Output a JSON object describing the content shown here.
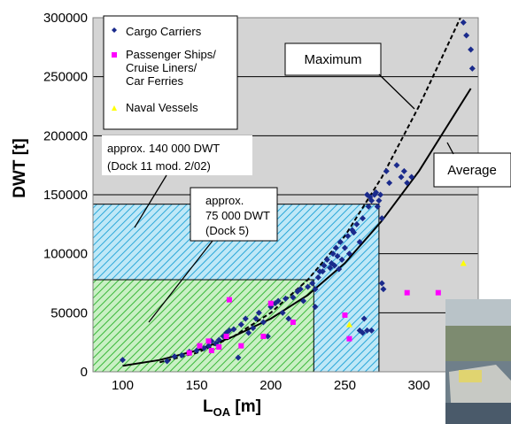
{
  "chart_data": {
    "type": "scatter",
    "xlabel": "L",
    "xlabel_sub": "OA",
    "xlabel_unit": " [m]",
    "ylabel": "DWT [t]",
    "xlim": [
      80,
      340
    ],
    "ylim": [
      0,
      300000
    ],
    "xticks": [
      100,
      150,
      200,
      250,
      300
    ],
    "yticks": [
      0,
      50000,
      100000,
      150000,
      200000,
      250000,
      300000
    ],
    "grid": true,
    "legend_position": "top-left",
    "colors": {
      "plot_bg": "#d4d4d4",
      "cargo": "#1a2a8c",
      "passenger": "#ff00ff",
      "naval": "#ffff00",
      "dock_large_hatch": "#2aa7d9",
      "dock_large_bg": "#bfe8f7",
      "dock_small_hatch": "#3ab83a",
      "dock_small_bg": "#c9f0c4"
    },
    "series": [
      {
        "name": "Cargo Carriers",
        "marker": "diamond",
        "points": [
          [
            100,
            10000
          ],
          [
            130,
            9000
          ],
          [
            135,
            13000
          ],
          [
            140,
            14000
          ],
          [
            145,
            17000
          ],
          [
            150,
            18000
          ],
          [
            155,
            20000
          ],
          [
            158,
            22000
          ],
          [
            160,
            26000
          ],
          [
            163,
            24000
          ],
          [
            165,
            27000
          ],
          [
            168,
            30000
          ],
          [
            170,
            33000
          ],
          [
            172,
            35000
          ],
          [
            175,
            36000
          ],
          [
            178,
            12000
          ],
          [
            180,
            40000
          ],
          [
            183,
            45000
          ],
          [
            185,
            33000
          ],
          [
            188,
            37000
          ],
          [
            190,
            45000
          ],
          [
            192,
            50000
          ],
          [
            195,
            42000
          ],
          [
            198,
            30000
          ],
          [
            200,
            55000
          ],
          [
            203,
            58000
          ],
          [
            205,
            60000
          ],
          [
            208,
            50000
          ],
          [
            210,
            62000
          ],
          [
            212,
            45000
          ],
          [
            215,
            63000
          ],
          [
            218,
            68000
          ],
          [
            220,
            70000
          ],
          [
            222,
            60000
          ],
          [
            225,
            72000
          ],
          [
            228,
            75000
          ],
          [
            230,
            70000
          ],
          [
            230,
            55000
          ],
          [
            232,
            80000
          ],
          [
            233,
            85000
          ],
          [
            235,
            85000
          ],
          [
            236,
            90000
          ],
          [
            238,
            95000
          ],
          [
            240,
            88000
          ],
          [
            241,
            92000
          ],
          [
            242,
            100000
          ],
          [
            243,
            90000
          ],
          [
            244,
            105000
          ],
          [
            245,
            98000
          ],
          [
            246,
            87000
          ],
          [
            247,
            110000
          ],
          [
            248,
            95000
          ],
          [
            250,
            105000
          ],
          [
            252,
            115000
          ],
          [
            253,
            100000
          ],
          [
            255,
            120000
          ],
          [
            256,
            118000
          ],
          [
            258,
            125000
          ],
          [
            260,
            110000
          ],
          [
            260,
            35000
          ],
          [
            262,
            130000
          ],
          [
            263,
            45000
          ],
          [
            265,
            150000
          ],
          [
            266,
            140000
          ],
          [
            267,
            148000
          ],
          [
            268,
            145000
          ],
          [
            270,
            150000
          ],
          [
            271,
            152000
          ],
          [
            272,
            140000
          ],
          [
            273,
            145000
          ],
          [
            274,
            150000
          ],
          [
            275,
            130000
          ],
          [
            275,
            75000
          ],
          [
            276,
            70000
          ],
          [
            278,
            170000
          ],
          [
            280,
            160000
          ],
          [
            285,
            175000
          ],
          [
            288,
            165000
          ],
          [
            290,
            170000
          ],
          [
            292,
            160000
          ],
          [
            295,
            165000
          ],
          [
            330,
            296000
          ],
          [
            332,
            285000
          ],
          [
            335,
            273000
          ],
          [
            336,
            257000
          ],
          [
            265,
            35000
          ],
          [
            262,
            33000
          ],
          [
            268,
            35000
          ]
        ]
      },
      {
        "name": "Passenger Ships/ Cruise Liners/ Car Ferries",
        "marker": "square",
        "points": [
          [
            145,
            16000
          ],
          [
            152,
            22000
          ],
          [
            158,
            26000
          ],
          [
            160,
            18000
          ],
          [
            165,
            21000
          ],
          [
            170,
            30000
          ],
          [
            172,
            61000
          ],
          [
            180,
            22000
          ],
          [
            195,
            30000
          ],
          [
            200,
            58000
          ],
          [
            215,
            42000
          ],
          [
            250,
            48000
          ],
          [
            253,
            28000
          ],
          [
            292,
            67000
          ],
          [
            313,
            67000
          ]
        ]
      },
      {
        "name": "Naval Vessels",
        "marker": "triangle",
        "points": [
          [
            253,
            40000
          ],
          [
            330,
            92000
          ]
        ]
      }
    ],
    "lines": [
      {
        "name": "Maximum",
        "style": "dashed",
        "points": [
          [
            125,
            8000
          ],
          [
            150,
            16000
          ],
          [
            175,
            30000
          ],
          [
            200,
            50000
          ],
          [
            225,
            78000
          ],
          [
            250,
            115000
          ],
          [
            275,
            165000
          ],
          [
            300,
            225000
          ],
          [
            315,
            265000
          ],
          [
            328,
            300000
          ]
        ]
      },
      {
        "name": "Average",
        "style": "solid",
        "points": [
          [
            100,
            5000
          ],
          [
            125,
            10000
          ],
          [
            150,
            18000
          ],
          [
            175,
            30000
          ],
          [
            200,
            45000
          ],
          [
            225,
            65000
          ],
          [
            250,
            92000
          ],
          [
            275,
            128000
          ],
          [
            300,
            170000
          ],
          [
            320,
            210000
          ],
          [
            335,
            240000
          ]
        ]
      }
    ],
    "regions": [
      {
        "id": "dock11",
        "label_lines": [
          "approx. 140 000 DWT",
          "(Dock 11 mod. 2/02)"
        ],
        "x_range": [
          80,
          273
        ],
        "y_range": [
          0,
          142000
        ]
      },
      {
        "id": "dock5",
        "label_lines": [
          "approx.",
          "75 000 DWT",
          "(Dock 5)"
        ],
        "x_range": [
          80,
          229
        ],
        "y_range": [
          0,
          78000
        ]
      }
    ],
    "annotations": {
      "maximum": "Maximum",
      "average": "Average"
    }
  }
}
